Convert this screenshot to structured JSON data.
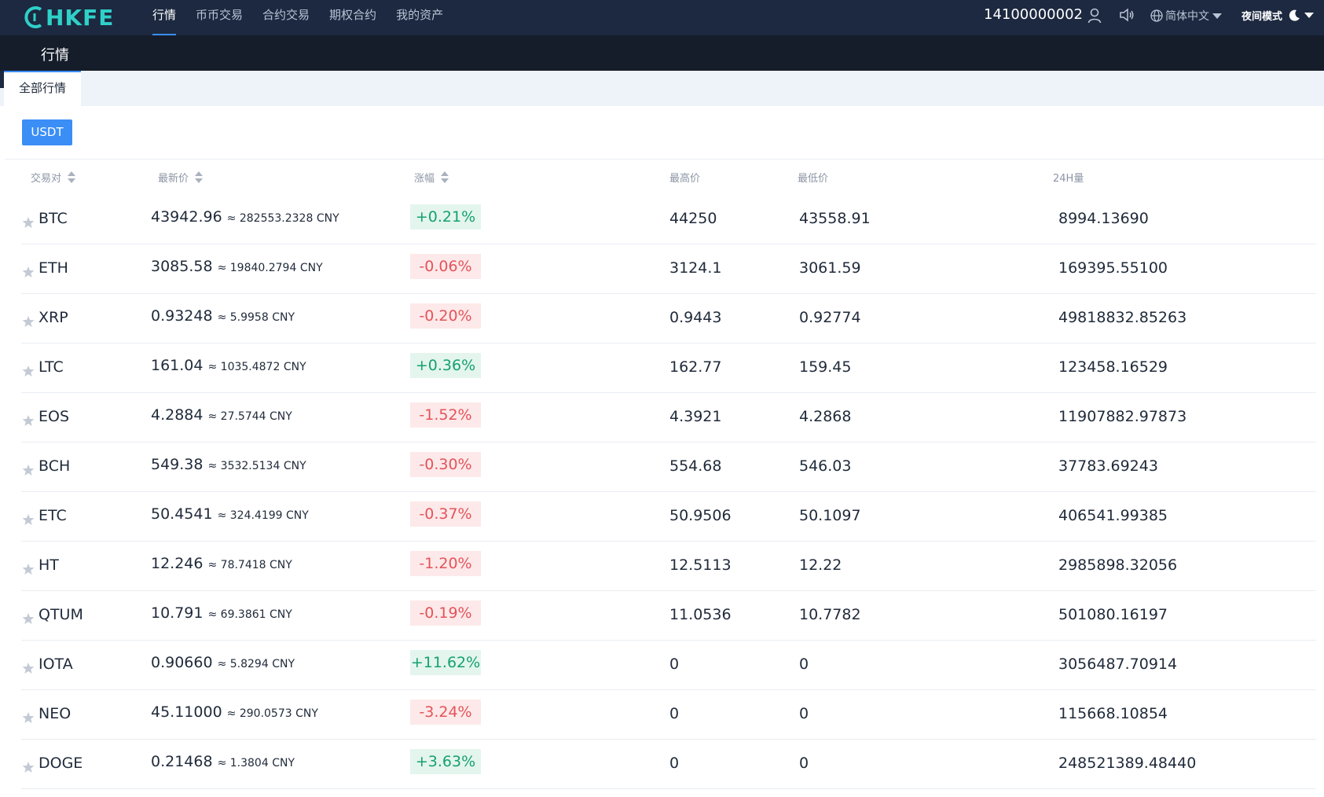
{
  "brand": {
    "logo_text": "HKFE",
    "logo_color": "#2fd0c8"
  },
  "nav": {
    "items": [
      {
        "label": "行情",
        "active": true
      },
      {
        "label": "币币交易",
        "active": false
      },
      {
        "label": "合约交易",
        "active": false
      },
      {
        "label": "期权合约",
        "active": false
      },
      {
        "label": "我的资产",
        "active": false
      }
    ]
  },
  "account": {
    "phone": "14100000002",
    "language": "简体中文",
    "night_mode": "夜间模式",
    "icons": [
      "user-icon",
      "speaker-icon",
      "globe-icon",
      "moon-icon"
    ]
  },
  "page": {
    "title": "行情"
  },
  "tabs": [
    {
      "label": "全部行情",
      "active": true
    }
  ],
  "currency_filter": {
    "label": "USDT"
  },
  "table": {
    "headers": {
      "pair": "交易对",
      "last_price": "最新价",
      "change": "涨幅",
      "high": "最高价",
      "low": "最低价",
      "volume": "24H量"
    },
    "rows": [
      {
        "symbol": "BTC",
        "price": "43942.96",
        "cny": "≈ 282553.2328 CNY",
        "change": "+0.21%",
        "direction": "up",
        "high": "44250",
        "low": "43558.91",
        "volume": "8994.13690"
      },
      {
        "symbol": "ETH",
        "price": "3085.58",
        "cny": "≈ 19840.2794 CNY",
        "change": "-0.06%",
        "direction": "down",
        "high": "3124.1",
        "low": "3061.59",
        "volume": "169395.55100"
      },
      {
        "symbol": "XRP",
        "price": "0.93248",
        "cny": "≈ 5.9958 CNY",
        "change": "-0.20%",
        "direction": "down",
        "high": "0.9443",
        "low": "0.92774",
        "volume": "49818832.85263"
      },
      {
        "symbol": "LTC",
        "price": "161.04",
        "cny": "≈ 1035.4872 CNY",
        "change": "+0.36%",
        "direction": "up",
        "high": "162.77",
        "low": "159.45",
        "volume": "123458.16529"
      },
      {
        "symbol": "EOS",
        "price": "4.2884",
        "cny": "≈ 27.5744 CNY",
        "change": "-1.52%",
        "direction": "down",
        "high": "4.3921",
        "low": "4.2868",
        "volume": "11907882.97873"
      },
      {
        "symbol": "BCH",
        "price": "549.38",
        "cny": "≈ 3532.5134 CNY",
        "change": "-0.30%",
        "direction": "down",
        "high": "554.68",
        "low": "546.03",
        "volume": "37783.69243"
      },
      {
        "symbol": "ETC",
        "price": "50.4541",
        "cny": "≈ 324.4199 CNY",
        "change": "-0.37%",
        "direction": "down",
        "high": "50.9506",
        "low": "50.1097",
        "volume": "406541.99385"
      },
      {
        "symbol": "HT",
        "price": "12.246",
        "cny": "≈ 78.7418 CNY",
        "change": "-1.20%",
        "direction": "down",
        "high": "12.5113",
        "low": "12.22",
        "volume": "2985898.32056"
      },
      {
        "symbol": "QTUM",
        "price": "10.791",
        "cny": "≈ 69.3861 CNY",
        "change": "-0.19%",
        "direction": "down",
        "high": "11.0536",
        "low": "10.7782",
        "volume": "501080.16197"
      },
      {
        "symbol": "IOTA",
        "price": "0.90660",
        "cny": "≈ 5.8294 CNY",
        "change": "+11.62%",
        "direction": "up",
        "high": "0",
        "low": "0",
        "volume": "3056487.70914"
      },
      {
        "symbol": "NEO",
        "price": "45.11000",
        "cny": "≈ 290.0573 CNY",
        "change": "-3.24%",
        "direction": "down",
        "high": "0",
        "low": "0",
        "volume": "115668.10854"
      },
      {
        "symbol": "DOGE",
        "price": "0.21468",
        "cny": "≈ 1.3804 CNY",
        "change": "+3.63%",
        "direction": "up",
        "high": "0",
        "low": "0",
        "volume": "248521389.48440"
      }
    ]
  },
  "colors": {
    "nav_bg": "#1c2940",
    "accent": "#3a8ef6",
    "up": "#14a171",
    "up_bg": "#e4f5ee",
    "down": "#e4535a",
    "down_bg": "#fde9e9"
  }
}
